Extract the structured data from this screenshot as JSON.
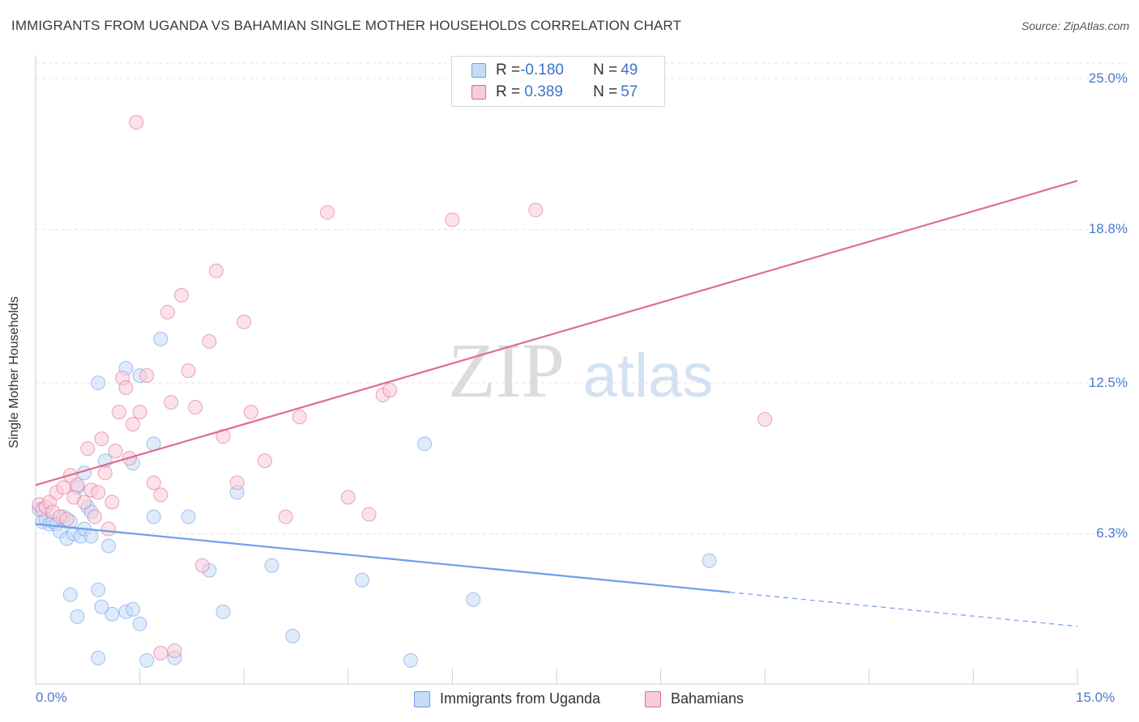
{
  "header": {
    "title": "IMMIGRANTS FROM UGANDA VS BAHAMIAN SINGLE MOTHER HOUSEHOLDS CORRELATION CHART",
    "source": "Source: ZipAtlas.com"
  },
  "watermark": {
    "zip": "ZIP",
    "atlas": "atlas"
  },
  "legend_top": {
    "rows": [
      {
        "r_label": "R = ",
        "r_value": "-0.180",
        "n_label": "N = ",
        "n_value": "49",
        "color": "#a9c8f0"
      },
      {
        "r_label": "R = ",
        "r_value": " 0.389",
        "n_label": "N = ",
        "n_value": "57",
        "color": "#f5b8cb"
      }
    ]
  },
  "bottom_legend": {
    "items": [
      {
        "label": "Immigrants from Uganda",
        "color": "#a9c8f0"
      },
      {
        "label": "Bahamians",
        "color": "#f5b8cb"
      }
    ]
  },
  "chart_data": {
    "type": "scatter",
    "title": "IMMIGRANTS FROM UGANDA VS BAHAMIAN SINGLE MOTHER HOUSEHOLDS CORRELATION CHART",
    "xlabel": "",
    "ylabel": "Single Mother Households",
    "xlim": [
      0,
      15
    ],
    "ylim": [
      0,
      25
    ],
    "x_tick_labels": [
      "0.0%",
      "15.0%"
    ],
    "y_tick_labels": [
      "6.3%",
      "12.5%",
      "18.8%",
      "25.0%"
    ],
    "y_ticks": [
      6.3,
      12.5,
      18.8,
      25.0
    ],
    "grid": true,
    "legend_position": "top-center",
    "series": [
      {
        "name": "Immigrants from Uganda",
        "color": "#6d9eea",
        "fill": "#c5dbf6",
        "R": -0.18,
        "N": 49,
        "trend": {
          "x0": 0,
          "y0": 6.7,
          "x1": 10.0,
          "y1": 3.9,
          "dash_to_x": 15,
          "dash_to_y": 2.5
        },
        "points": [
          [
            0.05,
            7.3
          ],
          [
            0.1,
            6.8
          ],
          [
            0.15,
            6.9
          ],
          [
            0.2,
            6.7
          ],
          [
            0.25,
            6.8
          ],
          [
            0.3,
            6.7
          ],
          [
            0.35,
            6.4
          ],
          [
            0.4,
            7.0
          ],
          [
            0.45,
            6.1
          ],
          [
            0.5,
            6.8
          ],
          [
            0.55,
            6.3
          ],
          [
            0.6,
            8.2
          ],
          [
            0.65,
            6.2
          ],
          [
            0.7,
            8.8
          ],
          [
            0.7,
            6.5
          ],
          [
            0.75,
            7.4
          ],
          [
            0.8,
            7.2
          ],
          [
            0.9,
            4.0
          ],
          [
            0.5,
            3.8
          ],
          [
            1.0,
            9.3
          ],
          [
            1.05,
            5.8
          ],
          [
            1.1,
            3.0
          ],
          [
            0.95,
            3.3
          ],
          [
            1.3,
            3.1
          ],
          [
            1.4,
            3.2
          ],
          [
            1.5,
            2.6
          ],
          [
            1.6,
            1.1
          ],
          [
            0.8,
            6.2
          ],
          [
            0.9,
            12.5
          ],
          [
            1.3,
            13.1
          ],
          [
            1.5,
            12.8
          ],
          [
            1.8,
            14.3
          ],
          [
            1.7,
            10.0
          ],
          [
            1.4,
            9.2
          ],
          [
            1.7,
            7.0
          ],
          [
            0.6,
            2.9
          ],
          [
            0.9,
            1.2
          ],
          [
            2.0,
            1.2
          ],
          [
            2.2,
            7.0
          ],
          [
            2.5,
            4.8
          ],
          [
            2.7,
            3.1
          ],
          [
            2.9,
            8.0
          ],
          [
            3.4,
            5.0
          ],
          [
            3.7,
            2.1
          ],
          [
            4.7,
            4.4
          ],
          [
            5.6,
            10.0
          ],
          [
            5.4,
            1.1
          ],
          [
            6.3,
            3.6
          ],
          [
            9.7,
            5.2
          ]
        ]
      },
      {
        "name": "Bahamians",
        "color": "#e06b93",
        "fill": "#f8cbd8",
        "R": 0.389,
        "N": 57,
        "trend": {
          "x0": 0,
          "y0": 8.3,
          "x1": 15,
          "y1": 20.8
        },
        "points": [
          [
            0.05,
            7.5
          ],
          [
            0.1,
            7.3
          ],
          [
            0.15,
            7.4
          ],
          [
            0.2,
            7.6
          ],
          [
            0.25,
            7.2
          ],
          [
            0.3,
            8.0
          ],
          [
            0.35,
            7.0
          ],
          [
            0.4,
            8.2
          ],
          [
            0.45,
            6.9
          ],
          [
            0.5,
            8.7
          ],
          [
            0.55,
            7.8
          ],
          [
            0.6,
            8.3
          ],
          [
            0.7,
            7.6
          ],
          [
            0.75,
            9.8
          ],
          [
            0.8,
            8.1
          ],
          [
            0.85,
            7.0
          ],
          [
            0.9,
            8.0
          ],
          [
            0.95,
            10.2
          ],
          [
            1.0,
            8.8
          ],
          [
            1.05,
            6.5
          ],
          [
            1.1,
            7.6
          ],
          [
            1.15,
            9.7
          ],
          [
            1.2,
            11.3
          ],
          [
            1.25,
            12.7
          ],
          [
            1.3,
            12.3
          ],
          [
            1.35,
            9.4
          ],
          [
            1.4,
            10.8
          ],
          [
            1.5,
            11.3
          ],
          [
            1.6,
            12.8
          ],
          [
            1.7,
            8.4
          ],
          [
            1.8,
            7.9
          ],
          [
            1.9,
            15.4
          ],
          [
            1.95,
            11.7
          ],
          [
            2.1,
            16.1
          ],
          [
            2.2,
            13.0
          ],
          [
            2.3,
            11.5
          ],
          [
            2.5,
            14.2
          ],
          [
            2.6,
            17.1
          ],
          [
            2.7,
            10.3
          ],
          [
            2.9,
            8.4
          ],
          [
            3.0,
            15.0
          ],
          [
            3.1,
            11.3
          ],
          [
            3.3,
            9.3
          ],
          [
            3.6,
            7.0
          ],
          [
            3.8,
            11.1
          ],
          [
            4.2,
            19.5
          ],
          [
            4.5,
            7.8
          ],
          [
            4.8,
            7.1
          ],
          [
            5.0,
            12.0
          ],
          [
            5.1,
            12.2
          ],
          [
            6.0,
            19.2
          ],
          [
            7.2,
            19.6
          ],
          [
            1.45,
            23.2
          ],
          [
            2.4,
            5.0
          ],
          [
            1.8,
            1.4
          ],
          [
            2.0,
            1.5
          ],
          [
            10.5,
            11.0
          ]
        ]
      }
    ]
  }
}
